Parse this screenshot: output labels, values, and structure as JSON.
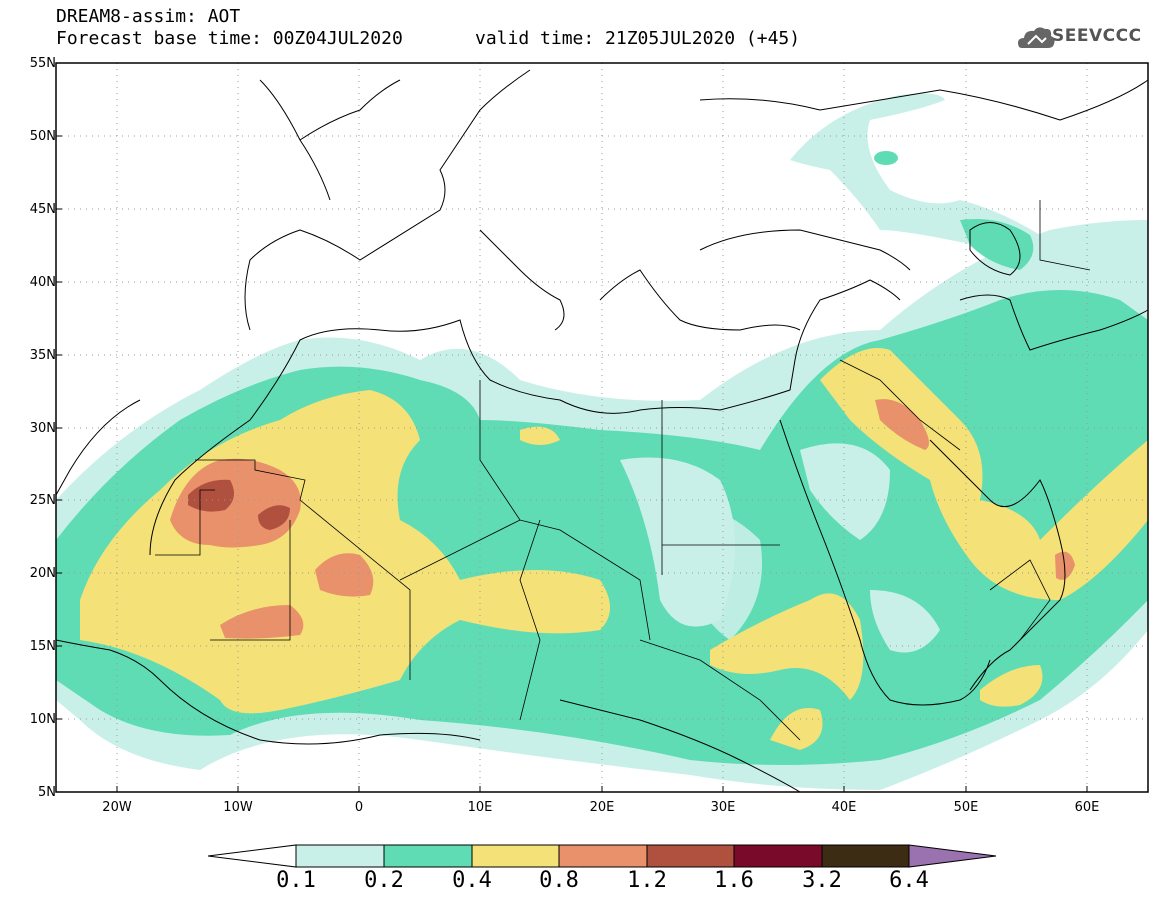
{
  "header": {
    "model_title": "DREAM8-assim: AOT",
    "base_time": "Forecast base time: 00Z04JUL2020",
    "valid_time": "valid time: 21Z05JUL2020 (+45)",
    "logo_text": "SEEVCCC"
  },
  "map": {
    "lat_labels": [
      "55N",
      "50N",
      "45N",
      "40N",
      "35N",
      "30N",
      "25N",
      "20N",
      "15N",
      "10N",
      "5N"
    ],
    "lon_labels": [
      "20W",
      "10W",
      "0",
      "10E",
      "20E",
      "30E",
      "40E",
      "50E",
      "60E"
    ],
    "lon_range": [
      -25,
      65
    ],
    "lat_range": [
      5,
      55
    ],
    "projection": "equirectangular",
    "gridlines": "dotted"
  },
  "legend": {
    "labels": [
      "0.1",
      "0.2",
      "0.4",
      "0.8",
      "1.2",
      "1.6",
      "3.2",
      "6.4"
    ],
    "colors": [
      "#c9f0e8",
      "#5fdcb4",
      "#f4e178",
      "#e8916a",
      "#b0503e",
      "#7a0a2a",
      "#3d2c14",
      "#9a72b0"
    ],
    "under_color": "#ffffff"
  }
}
